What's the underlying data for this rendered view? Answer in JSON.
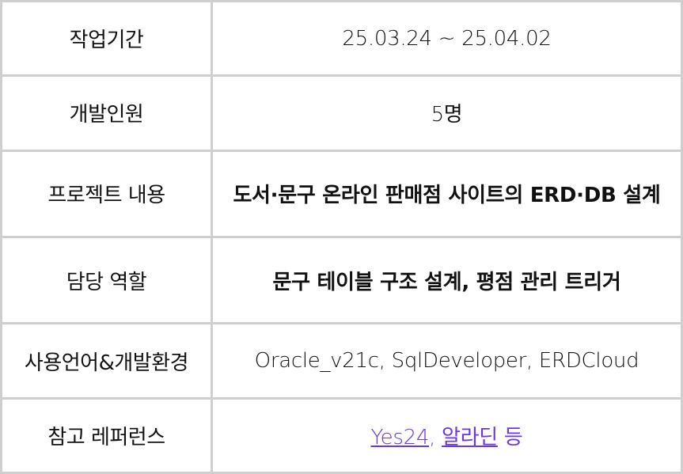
{
  "rows": [
    {
      "label": "작업기간",
      "value": "25.03.24 ~ 25.04.02"
    },
    {
      "label": "개발인원",
      "value": "5명"
    },
    {
      "label": "프로젝트 내용",
      "value": "도서·문구 온라인 판매점 사이트의 ERD·DB 설계"
    },
    {
      "label": "담당 역할",
      "value": "문구 테이블 구조 설계, 평점 관리 트리거"
    },
    {
      "label": "사용언어&개발환경",
      "value": "Oracle_v21c, SqlDeveloper, ERDCloud"
    },
    {
      "label": "참고 레퍼런스",
      "links": [
        "Yes24",
        "알라딘"
      ],
      "separator": ", ",
      "suffix": " 등"
    }
  ],
  "colors": {
    "border": "#cfcfcf",
    "link": "#6b35e8",
    "text": "#111111"
  }
}
